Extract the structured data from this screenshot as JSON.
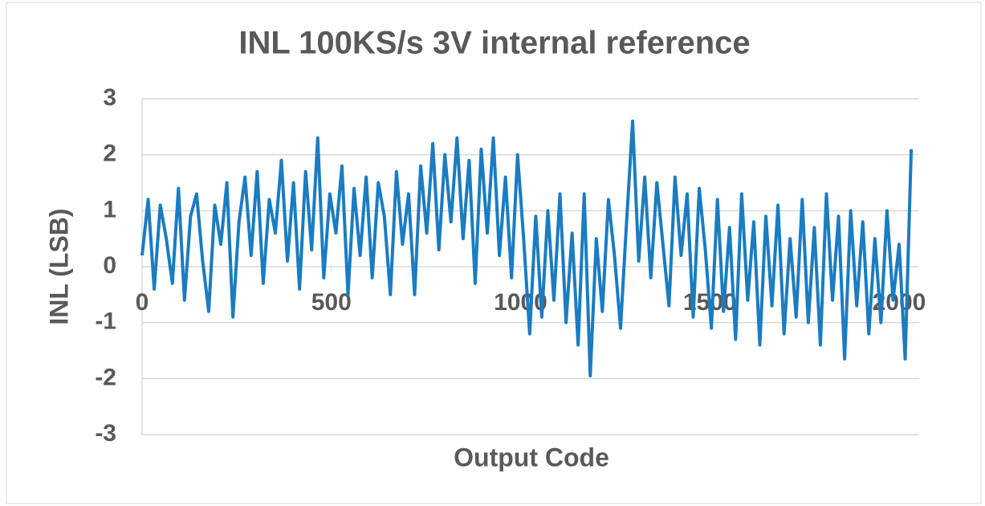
{
  "chart_data": {
    "type": "line",
    "title": "INL 100KS/s 3V internal reference",
    "xlabel": "Output Code",
    "ylabel": "INL (LSB)",
    "x": [
      0,
      16,
      32,
      48,
      64,
      80,
      96,
      112,
      128,
      144,
      160,
      176,
      192,
      208,
      224,
      240,
      256,
      272,
      288,
      304,
      320,
      336,
      352,
      368,
      384,
      400,
      416,
      432,
      448,
      464,
      480,
      496,
      512,
      528,
      544,
      560,
      576,
      592,
      608,
      624,
      640,
      656,
      672,
      688,
      704,
      720,
      736,
      752,
      768,
      784,
      800,
      816,
      832,
      848,
      864,
      880,
      896,
      912,
      928,
      944,
      960,
      976,
      992,
      1008,
      1024,
      1040,
      1056,
      1072,
      1088,
      1104,
      1120,
      1136,
      1152,
      1168,
      1184,
      1200,
      1216,
      1232,
      1248,
      1264,
      1280,
      1296,
      1312,
      1328,
      1344,
      1360,
      1376,
      1392,
      1408,
      1424,
      1440,
      1456,
      1472,
      1488,
      1504,
      1520,
      1536,
      1552,
      1568,
      1584,
      1600,
      1616,
      1632,
      1648,
      1664,
      1680,
      1696,
      1712,
      1728,
      1744,
      1760,
      1776,
      1792,
      1808,
      1824,
      1840,
      1856,
      1872,
      1888,
      1904,
      1920,
      1936,
      1952,
      1968,
      1984,
      2000,
      2016,
      2032
    ],
    "series": [
      {
        "name": "INL",
        "color": "#1a7cc1",
        "values": [
          0.2,
          1.2,
          -0.4,
          1.1,
          0.5,
          -0.3,
          1.4,
          -0.6,
          0.9,
          1.3,
          0.1,
          -0.8,
          1.1,
          0.4,
          1.5,
          -0.9,
          0.8,
          1.6,
          0.2,
          1.7,
          -0.3,
          1.2,
          0.6,
          1.9,
          0.1,
          1.5,
          -0.4,
          1.7,
          0.3,
          2.3,
          -0.2,
          1.3,
          0.6,
          1.8,
          -0.5,
          1.4,
          0.2,
          1.6,
          -0.2,
          1.5,
          0.9,
          -0.5,
          1.7,
          0.4,
          1.3,
          -0.5,
          1.8,
          0.6,
          2.2,
          0.3,
          2.0,
          0.8,
          2.3,
          0.5,
          1.9,
          -0.3,
          2.1,
          0.6,
          2.3,
          0.2,
          1.6,
          -0.2,
          2.0,
          0.5,
          -1.2,
          0.9,
          -0.9,
          1.0,
          -0.6,
          1.3,
          -1.0,
          0.6,
          -1.4,
          1.3,
          -1.95,
          0.5,
          -0.8,
          1.2,
          0.2,
          -1.1,
          0.8,
          2.6,
          0.1,
          1.6,
          -0.2,
          1.5,
          0.4,
          -0.7,
          1.6,
          0.2,
          1.3,
          -0.9,
          1.4,
          0.3,
          -1.1,
          1.2,
          -0.8,
          0.7,
          -1.3,
          1.3,
          -0.6,
          0.8,
          -1.4,
          0.9,
          -0.7,
          1.1,
          -1.2,
          0.5,
          -0.9,
          1.2,
          -1.0,
          0.7,
          -1.4,
          1.3,
          -0.6,
          0.9,
          -1.65,
          1.0,
          -0.7,
          0.8,
          -1.2,
          0.5,
          -1.0,
          1.0,
          -0.6,
          0.4,
          -1.65,
          2.1
        ]
      }
    ],
    "xlim": [
      0,
      2053
    ],
    "xticks": [
      0,
      500,
      1000,
      1500,
      2000
    ],
    "ylim": [
      -3,
      3
    ],
    "yticks": [
      -3,
      -2,
      -1,
      0,
      1,
      2,
      3
    ],
    "grid": true
  }
}
